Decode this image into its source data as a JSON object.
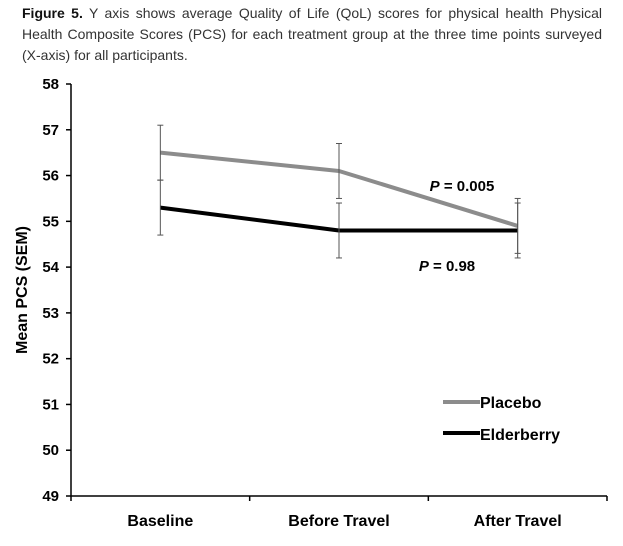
{
  "caption": {
    "label": "Figure 5.",
    "text": " Y axis shows average Quality of Life (QoL) scores for physical health Physical Health Composite Scores (PCS) for each treatment group at the three time points surveyed (X-axis) for all participants."
  },
  "colors": {
    "placebo": "#8c8c8c",
    "elderberry": "#000000",
    "axis": "#000000",
    "caption_text": "#333333"
  },
  "chart_data": {
    "type": "line",
    "title": "",
    "xlabel": "",
    "ylabel": "Mean PCS (SEM)",
    "categories": [
      "Baseline",
      "Before Travel",
      "After Travel"
    ],
    "ylim": [
      49,
      58
    ],
    "yticks": [
      "49",
      "50",
      "51",
      "52",
      "53",
      "54",
      "55",
      "56",
      "57",
      "58"
    ],
    "grid": false,
    "legend_position": "bottom-right",
    "series": [
      {
        "name": "Placebo",
        "color": "#8c8c8c",
        "values": [
          56.5,
          56.1,
          54.9
        ],
        "sem": [
          0.6,
          0.6,
          0.6
        ]
      },
      {
        "name": "Elderberry",
        "color": "#000000",
        "values": [
          55.3,
          54.8,
          54.8
        ],
        "sem": [
          0.6,
          0.6,
          0.6
        ]
      }
    ],
    "annotations": [
      {
        "prefix": "P",
        "text": " = 0.005",
        "series": "Placebo"
      },
      {
        "prefix": "P",
        "text": " = 0.98",
        "series": "Elderberry"
      }
    ]
  }
}
